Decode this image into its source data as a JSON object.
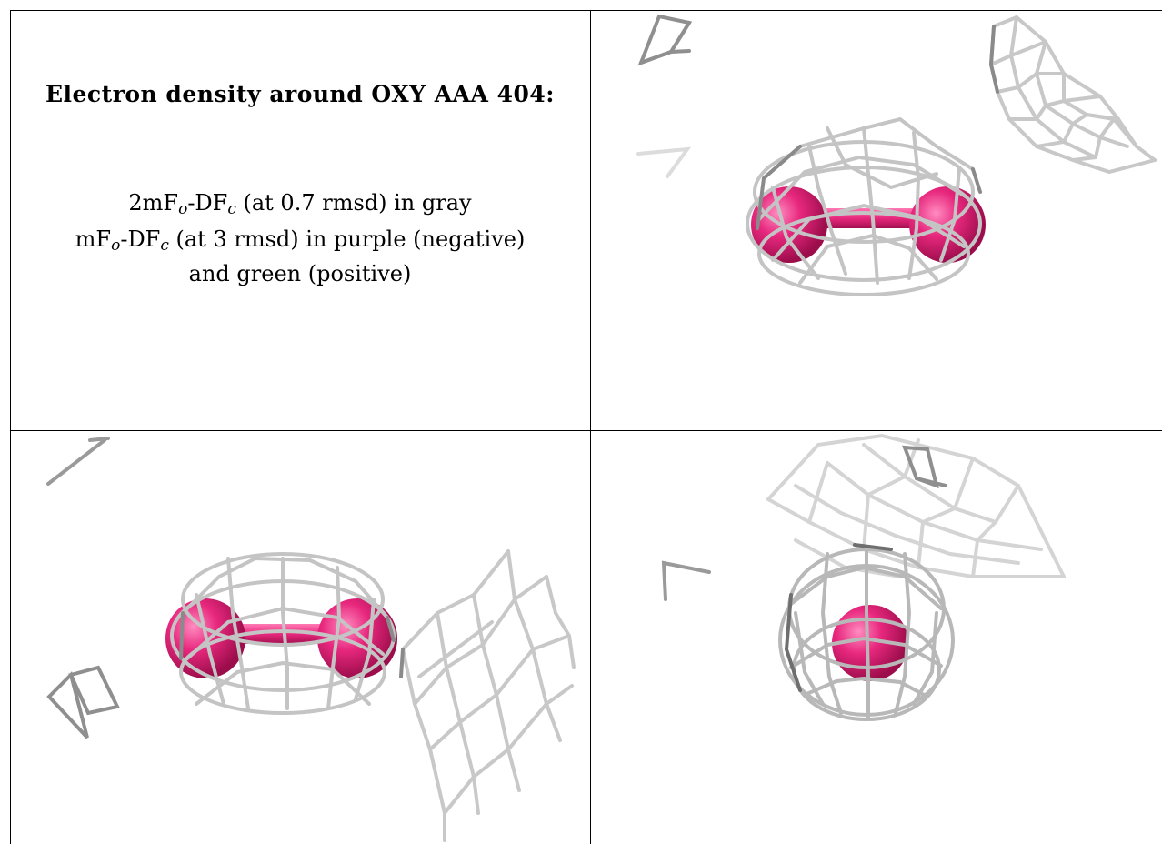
{
  "caption": {
    "title": "Electron density around OXY AAA 404:",
    "line1": {
      "a": "2mF",
      "b": "o",
      "c": "-DF",
      "d": "c",
      "e": " (at 0.7 rmsd) in gray"
    },
    "line2": {
      "a": "mF",
      "b": "o",
      "c": "-DF",
      "d": "c",
      "e": " (at 3 rmsd) in purple (negative)"
    },
    "line3": "and green (positive)"
  },
  "colors": {
    "mesh": "#c8c8c8",
    "mesh_dark": "#8a8a8a",
    "atom": "#e8287e",
    "atom_dark": "#a3104f",
    "border": "#000000"
  },
  "panels": [
    {
      "view": "top-right",
      "atoms": 2
    },
    {
      "view": "bottom-left",
      "atoms": 2
    },
    {
      "view": "bottom-right",
      "atoms": 1
    }
  ]
}
